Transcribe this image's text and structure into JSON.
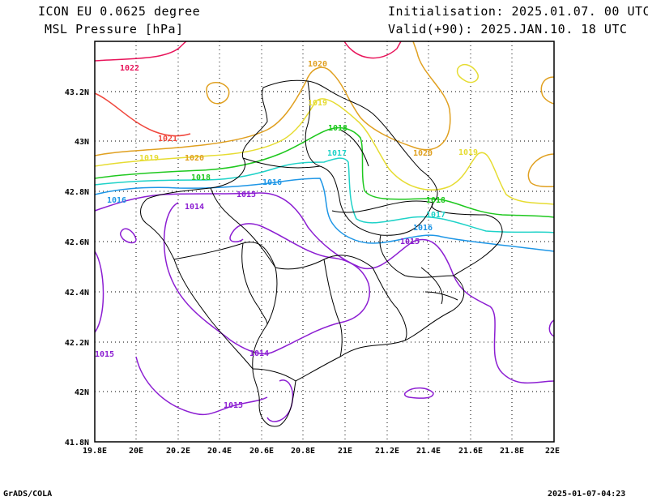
{
  "header": {
    "model": "ICON EU 0.0625 degree",
    "field": "MSL Pressure [hPa]",
    "init": "Initialisation: 2025.01.07. 00 UTC",
    "valid": "Valid(+90): 2025.JAN.10. 18 UTC"
  },
  "axes": {
    "lat_labels": [
      "43.2N",
      "43N",
      "42.8N",
      "42.6N",
      "42.4N",
      "42.2N",
      "42N",
      "41.8N"
    ],
    "lon_labels": [
      "19.8E",
      "20E",
      "20.2E",
      "20.4E",
      "20.6E",
      "20.8E",
      "21E",
      "21.2E",
      "21.4E",
      "21.6E",
      "21.8E",
      "22E"
    ]
  },
  "contour_labels": {
    "l1022": "1022",
    "l1021": "1021",
    "l1020a": "1020",
    "l1020b": "1020",
    "l1020c": "1020",
    "l1019a": "1019",
    "l1019b": "1019",
    "l1019c": "1019",
    "l1018a": "1018",
    "l1018b": "1018",
    "l1018c": "1018",
    "l1017a": "1017",
    "l1017b": "1017",
    "l1016a": "1016",
    "l1016b": "1016",
    "l1016c": "1016",
    "l1015a": "1015",
    "l1015b": "1015",
    "l1015c": "1015",
    "l1015d": "1015",
    "l1014a": "1014",
    "l1014b": "1014"
  },
  "colors": {
    "c1022": "#e8145a",
    "c1021": "#f0463c",
    "c1020": "#e0a020",
    "c1019": "#e6dc32",
    "c1018": "#1ec81e",
    "c1017": "#1ed2c8",
    "c1016": "#1e96e6",
    "c1015": "#8c1ed2",
    "c1014": "#8c1ed2"
  },
  "footer": {
    "left": "GrADS/COLA",
    "right": "2025-01-07-04:23"
  }
}
